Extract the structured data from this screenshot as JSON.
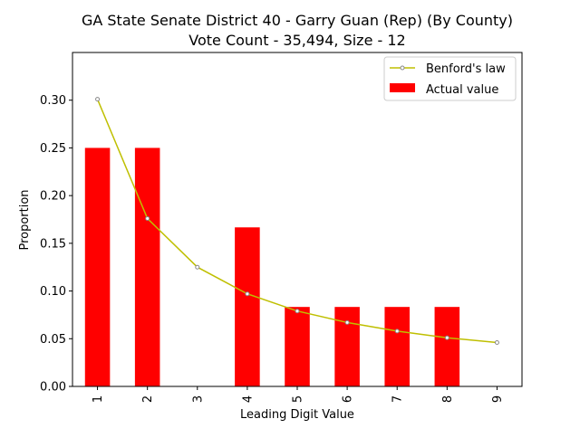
{
  "chart_data": {
    "type": "bar",
    "title": "GA State Senate District 40 - Garry Guan (Rep) (By County)",
    "subtitle": "Vote Count - 35,494, Size - 12",
    "xlabel": "Leading Digit Value",
    "ylabel": "Proportion",
    "categories": [
      "1",
      "2",
      "3",
      "4",
      "5",
      "6",
      "7",
      "8",
      "9"
    ],
    "ylim": [
      0,
      0.35
    ],
    "yticks": [
      "0.00",
      "0.05",
      "0.10",
      "0.15",
      "0.20",
      "0.25",
      "0.30"
    ],
    "grid": false,
    "legend_position": "top-right",
    "series": [
      {
        "name": "Benford's law",
        "type": "line",
        "color": "#bfbf00",
        "marker": "circle",
        "values": [
          0.301,
          0.176,
          0.125,
          0.097,
          0.079,
          0.067,
          0.058,
          0.051,
          0.046
        ]
      },
      {
        "name": "Actual value",
        "type": "bar",
        "color": "#ff0000",
        "values": [
          0.25,
          0.25,
          0.0,
          0.1667,
          0.0833,
          0.0833,
          0.0833,
          0.0833,
          0.0
        ]
      }
    ]
  }
}
